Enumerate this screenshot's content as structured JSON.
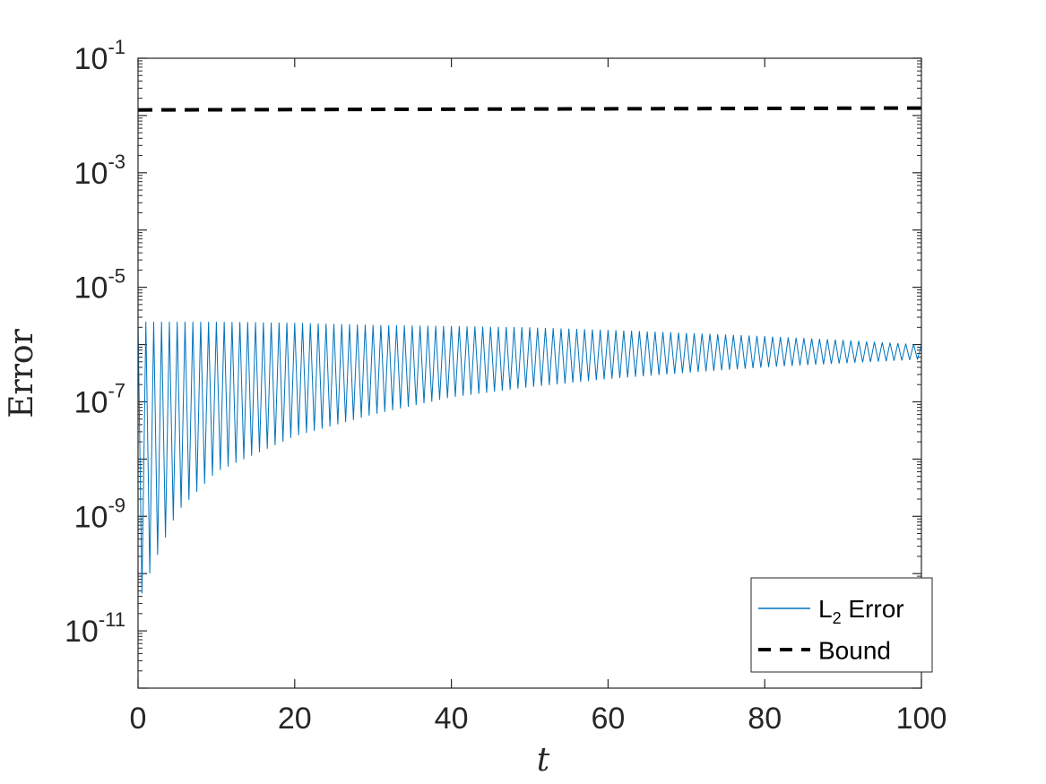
{
  "chart_data": {
    "type": "line",
    "xlabel": "t",
    "ylabel": "Error",
    "y_scale": "log",
    "xlim": [
      0,
      100
    ],
    "ylim": [
      1e-12,
      0.1
    ],
    "x_ticks": [
      0,
      20,
      40,
      60,
      80,
      100
    ],
    "x_tick_labels": [
      "0",
      "20",
      "40",
      "60",
      "80",
      "100"
    ],
    "y_ticks": [
      {
        "value": 0.1,
        "base": "10",
        "exp": "-1"
      },
      {
        "value": 0.001,
        "base": "10",
        "exp": "-3"
      },
      {
        "value": 1e-05,
        "base": "10",
        "exp": "-5"
      },
      {
        "value": 1e-07,
        "base": "10",
        "exp": "-7"
      },
      {
        "value": 1e-09,
        "base": "10",
        "exp": "-9"
      },
      {
        "value": 1e-11,
        "base": "10",
        "exp": "-11"
      }
    ],
    "grid": false,
    "legend_position": "bottom-right",
    "series": [
      {
        "name": "L2 Error",
        "legend_label": {
          "main": "L",
          "sub": "2",
          "rest": " Error"
        },
        "color": "#0072BD",
        "style": "solid",
        "oscillation_period": 1.0,
        "envelope_upper": [
          [
            0,
            2.5e-06
          ],
          [
            10,
            2.5e-06
          ],
          [
            20,
            2.4e-06
          ],
          [
            30,
            2.2e-06
          ],
          [
            40,
            2.1e-06
          ],
          [
            50,
            2e-06
          ],
          [
            60,
            1.8e-06
          ],
          [
            70,
            1.6e-06
          ],
          [
            80,
            1.4e-06
          ],
          [
            90,
            1.2e-06
          ],
          [
            100,
            1e-06
          ]
        ],
        "envelope_lower": [
          [
            0,
            3e-11
          ],
          [
            2,
            1.5e-10
          ],
          [
            5,
            1.2e-09
          ],
          [
            10,
            6e-09
          ],
          [
            20,
            2.5e-08
          ],
          [
            30,
            6e-08
          ],
          [
            40,
            1.2e-07
          ],
          [
            50,
            1.8e-07
          ],
          [
            60,
            2.5e-07
          ],
          [
            70,
            3.2e-07
          ],
          [
            80,
            4e-07
          ],
          [
            90,
            4.7e-07
          ],
          [
            100,
            5.5e-07
          ]
        ]
      },
      {
        "name": "Bound",
        "color": "#000000",
        "style": "dashed",
        "points": [
          [
            0,
            0.0125
          ],
          [
            100,
            0.0135
          ]
        ]
      }
    ]
  }
}
